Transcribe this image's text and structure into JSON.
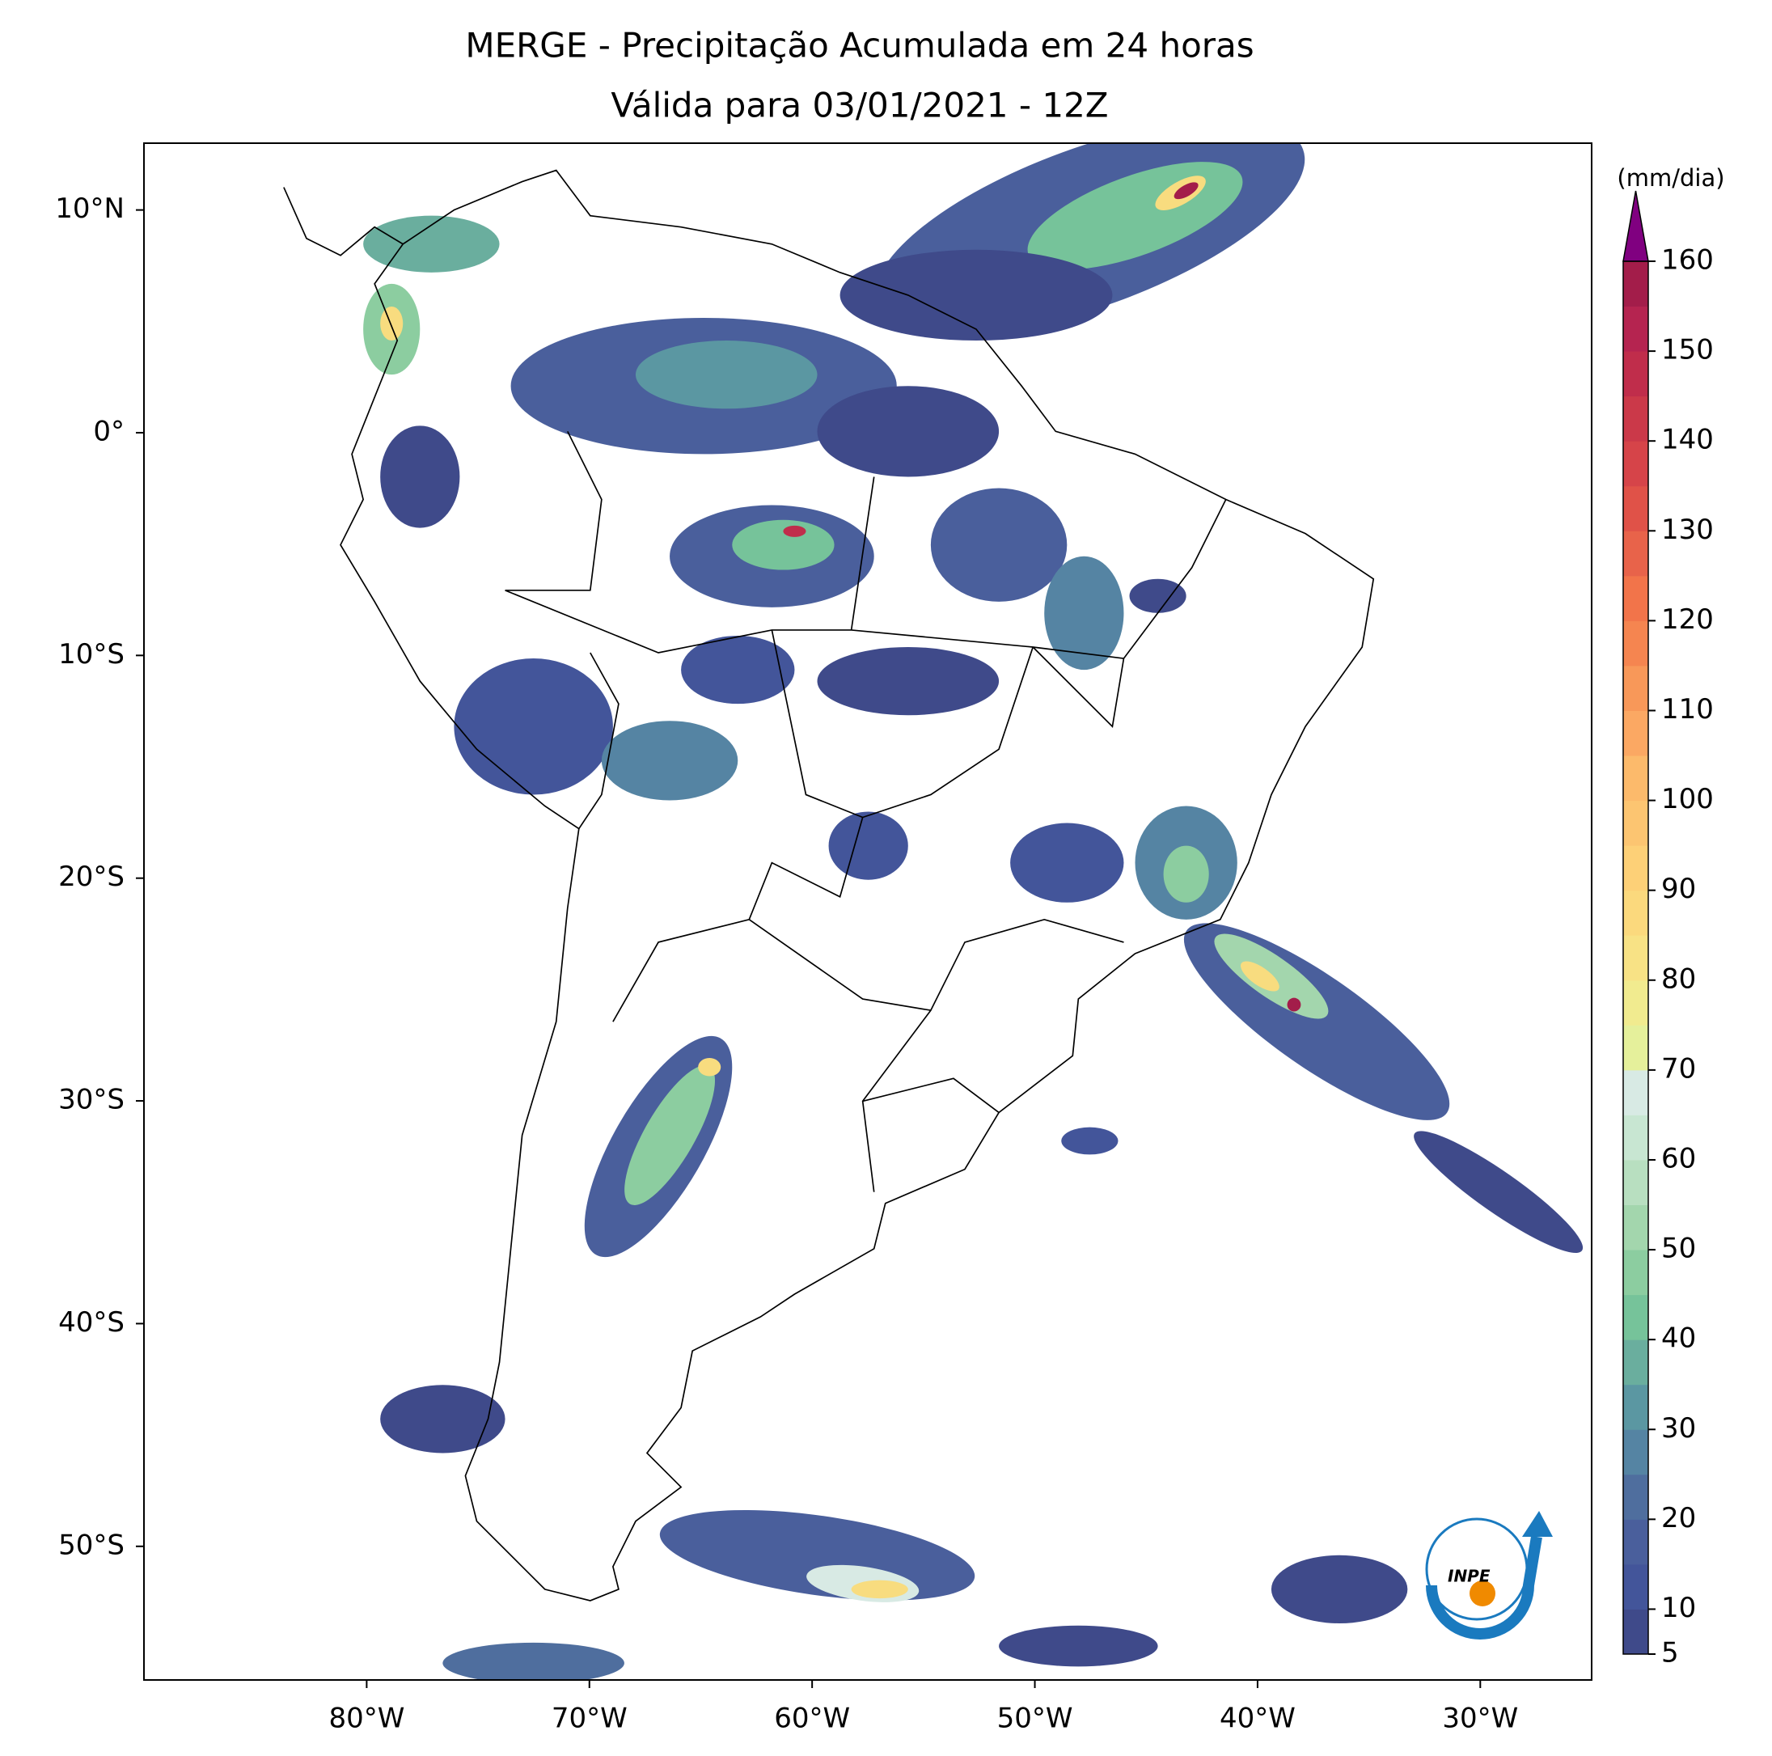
{
  "chart_data": {
    "type": "contour-map",
    "title": [
      "MERGE - Precipitação Acumulada em 24 horas",
      "Válida para 03/01/2021 - 12Z"
    ],
    "xlim": [
      -90,
      -25
    ],
    "ylim": [
      -56,
      13
    ],
    "xticks": [
      {
        "value": -80,
        "label": "80°W"
      },
      {
        "value": -70,
        "label": "70°W"
      },
      {
        "value": -60,
        "label": "60°W"
      },
      {
        "value": -50,
        "label": "50°W"
      },
      {
        "value": -40,
        "label": "40°W"
      },
      {
        "value": -30,
        "label": "30°W"
      }
    ],
    "yticks": [
      {
        "value": 10,
        "label": "10°N"
      },
      {
        "value": 0,
        "label": "0°"
      },
      {
        "value": -10,
        "label": "10°S"
      },
      {
        "value": -20,
        "label": "20°S"
      },
      {
        "value": -30,
        "label": "30°S"
      },
      {
        "value": -40,
        "label": "40°S"
      },
      {
        "value": -50,
        "label": "50°S"
      }
    ],
    "colorbar": {
      "label": "(mm/dia)",
      "levels": [
        5,
        10,
        15,
        20,
        25,
        30,
        35,
        40,
        45,
        50,
        55,
        60,
        65,
        70,
        75,
        80,
        85,
        90,
        95,
        100,
        105,
        110,
        115,
        120,
        125,
        130,
        135,
        140,
        145,
        150,
        155,
        160
      ],
      "colors": [
        "#3f4a8a",
        "#43559a",
        "#4a5f9c",
        "#4f6e9e",
        "#5584a3",
        "#5b97a2",
        "#6aae9e",
        "#76c39a",
        "#8ccda0",
        "#a3d6ad",
        "#b8dfc0",
        "#c8e6d2",
        "#d8eae4",
        "#e5f09b",
        "#f1eb8f",
        "#f8e285",
        "#fbd97d",
        "#fdd077",
        "#fcc571",
        "#fcba6b",
        "#fba863",
        "#f89859",
        "#f58550",
        "#f2744a",
        "#e8634a",
        "#e05248",
        "#d64449",
        "#cb3949",
        "#c02d4b",
        "#b52450",
        "#a31d4a"
      ],
      "extend_color": "#800080",
      "ticks": [
        5,
        10,
        20,
        30,
        40,
        50,
        60,
        70,
        80,
        90,
        100,
        110,
        120,
        130,
        140,
        150,
        160
      ]
    },
    "logo": "INPE"
  }
}
